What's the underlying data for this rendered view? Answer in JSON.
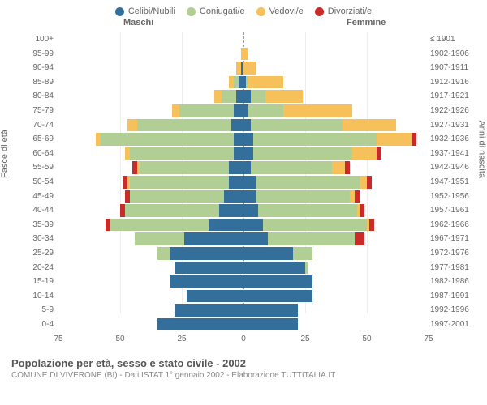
{
  "chart": {
    "type": "population-pyramid",
    "title": "Popolazione per età, sesso e stato civile - 2002",
    "subtitle": "COMUNE DI VIVERONE (BI) - Dati ISTAT 1° gennaio 2002 - Elaborazione TUTTITALIA.IT",
    "header_male": "Maschi",
    "header_female": "Femmine",
    "y_axis_left_title": "Fasce di età",
    "y_axis_right_title": "Anni di nascita",
    "x_max": 75,
    "x_ticks": [
      75,
      50,
      25,
      0,
      25,
      50,
      75
    ],
    "colors": {
      "celibi": "#346f9b",
      "coniugati": "#b1cf94",
      "vedovi": "#f6c15a",
      "divorziati": "#c92a2a",
      "grid": "#eeeeee",
      "centerline": "#999999",
      "text": "#666666",
      "background": "#ffffff"
    },
    "legend": [
      {
        "label": "Celibi/Nubili",
        "key": "celibi"
      },
      {
        "label": "Coniugati/e",
        "key": "coniugati"
      },
      {
        "label": "Vedovi/e",
        "key": "vedovi"
      },
      {
        "label": "Divorziati/e",
        "key": "divorziati"
      }
    ],
    "age_bands": [
      "100+",
      "95-99",
      "90-94",
      "85-89",
      "80-84",
      "75-79",
      "70-74",
      "65-69",
      "60-64",
      "55-59",
      "50-54",
      "45-49",
      "40-44",
      "35-39",
      "30-34",
      "25-29",
      "20-24",
      "15-19",
      "10-14",
      "5-9",
      "0-4"
    ],
    "birth_bands": [
      "≤ 1901",
      "1902-1906",
      "1907-1911",
      "1912-1916",
      "1917-1921",
      "1922-1926",
      "1927-1931",
      "1932-1936",
      "1937-1941",
      "1942-1946",
      "1947-1951",
      "1952-1956",
      "1957-1961",
      "1962-1966",
      "1967-1971",
      "1972-1976",
      "1977-1981",
      "1982-1986",
      "1987-1991",
      "1992-1996",
      "1997-2001"
    ],
    "rows": [
      {
        "m": [
          0,
          0,
          0,
          0
        ],
        "f": [
          0,
          0,
          0,
          0
        ]
      },
      {
        "m": [
          0,
          0,
          1,
          0
        ],
        "f": [
          0,
          0,
          2,
          0
        ]
      },
      {
        "m": [
          1,
          0,
          2,
          0
        ],
        "f": [
          0,
          0,
          5,
          0
        ]
      },
      {
        "m": [
          2,
          2,
          2,
          0
        ],
        "f": [
          1,
          1,
          14,
          0
        ]
      },
      {
        "m": [
          3,
          6,
          3,
          0
        ],
        "f": [
          3,
          6,
          15,
          0
        ]
      },
      {
        "m": [
          4,
          22,
          3,
          0
        ],
        "f": [
          2,
          14,
          28,
          0
        ]
      },
      {
        "m": [
          5,
          38,
          4,
          0
        ],
        "f": [
          3,
          37,
          22,
          0
        ]
      },
      {
        "m": [
          4,
          54,
          2,
          0
        ],
        "f": [
          4,
          50,
          14,
          2
        ]
      },
      {
        "m": [
          4,
          42,
          2,
          0
        ],
        "f": [
          4,
          40,
          10,
          2
        ]
      },
      {
        "m": [
          6,
          36,
          1,
          2
        ],
        "f": [
          3,
          33,
          5,
          2
        ]
      },
      {
        "m": [
          6,
          40,
          1,
          2
        ],
        "f": [
          5,
          42,
          3,
          2
        ]
      },
      {
        "m": [
          8,
          38,
          0,
          2
        ],
        "f": [
          5,
          38,
          2,
          2
        ]
      },
      {
        "m": [
          10,
          38,
          0,
          2
        ],
        "f": [
          6,
          40,
          1,
          2
        ]
      },
      {
        "m": [
          14,
          40,
          0,
          2
        ],
        "f": [
          8,
          42,
          1,
          2
        ]
      },
      {
        "m": [
          24,
          20,
          0,
          0
        ],
        "f": [
          10,
          35,
          0,
          4
        ]
      },
      {
        "m": [
          30,
          5,
          0,
          0
        ],
        "f": [
          20,
          8,
          0,
          0
        ]
      },
      {
        "m": [
          28,
          0,
          0,
          0
        ],
        "f": [
          25,
          1,
          0,
          0
        ]
      },
      {
        "m": [
          30,
          0,
          0,
          0
        ],
        "f": [
          28,
          0,
          0,
          0
        ]
      },
      {
        "m": [
          23,
          0,
          0,
          0
        ],
        "f": [
          28,
          0,
          0,
          0
        ]
      },
      {
        "m": [
          28,
          0,
          0,
          0
        ],
        "f": [
          22,
          0,
          0,
          0
        ]
      },
      {
        "m": [
          35,
          0,
          0,
          0
        ],
        "f": [
          22,
          0,
          0,
          0
        ]
      }
    ]
  }
}
